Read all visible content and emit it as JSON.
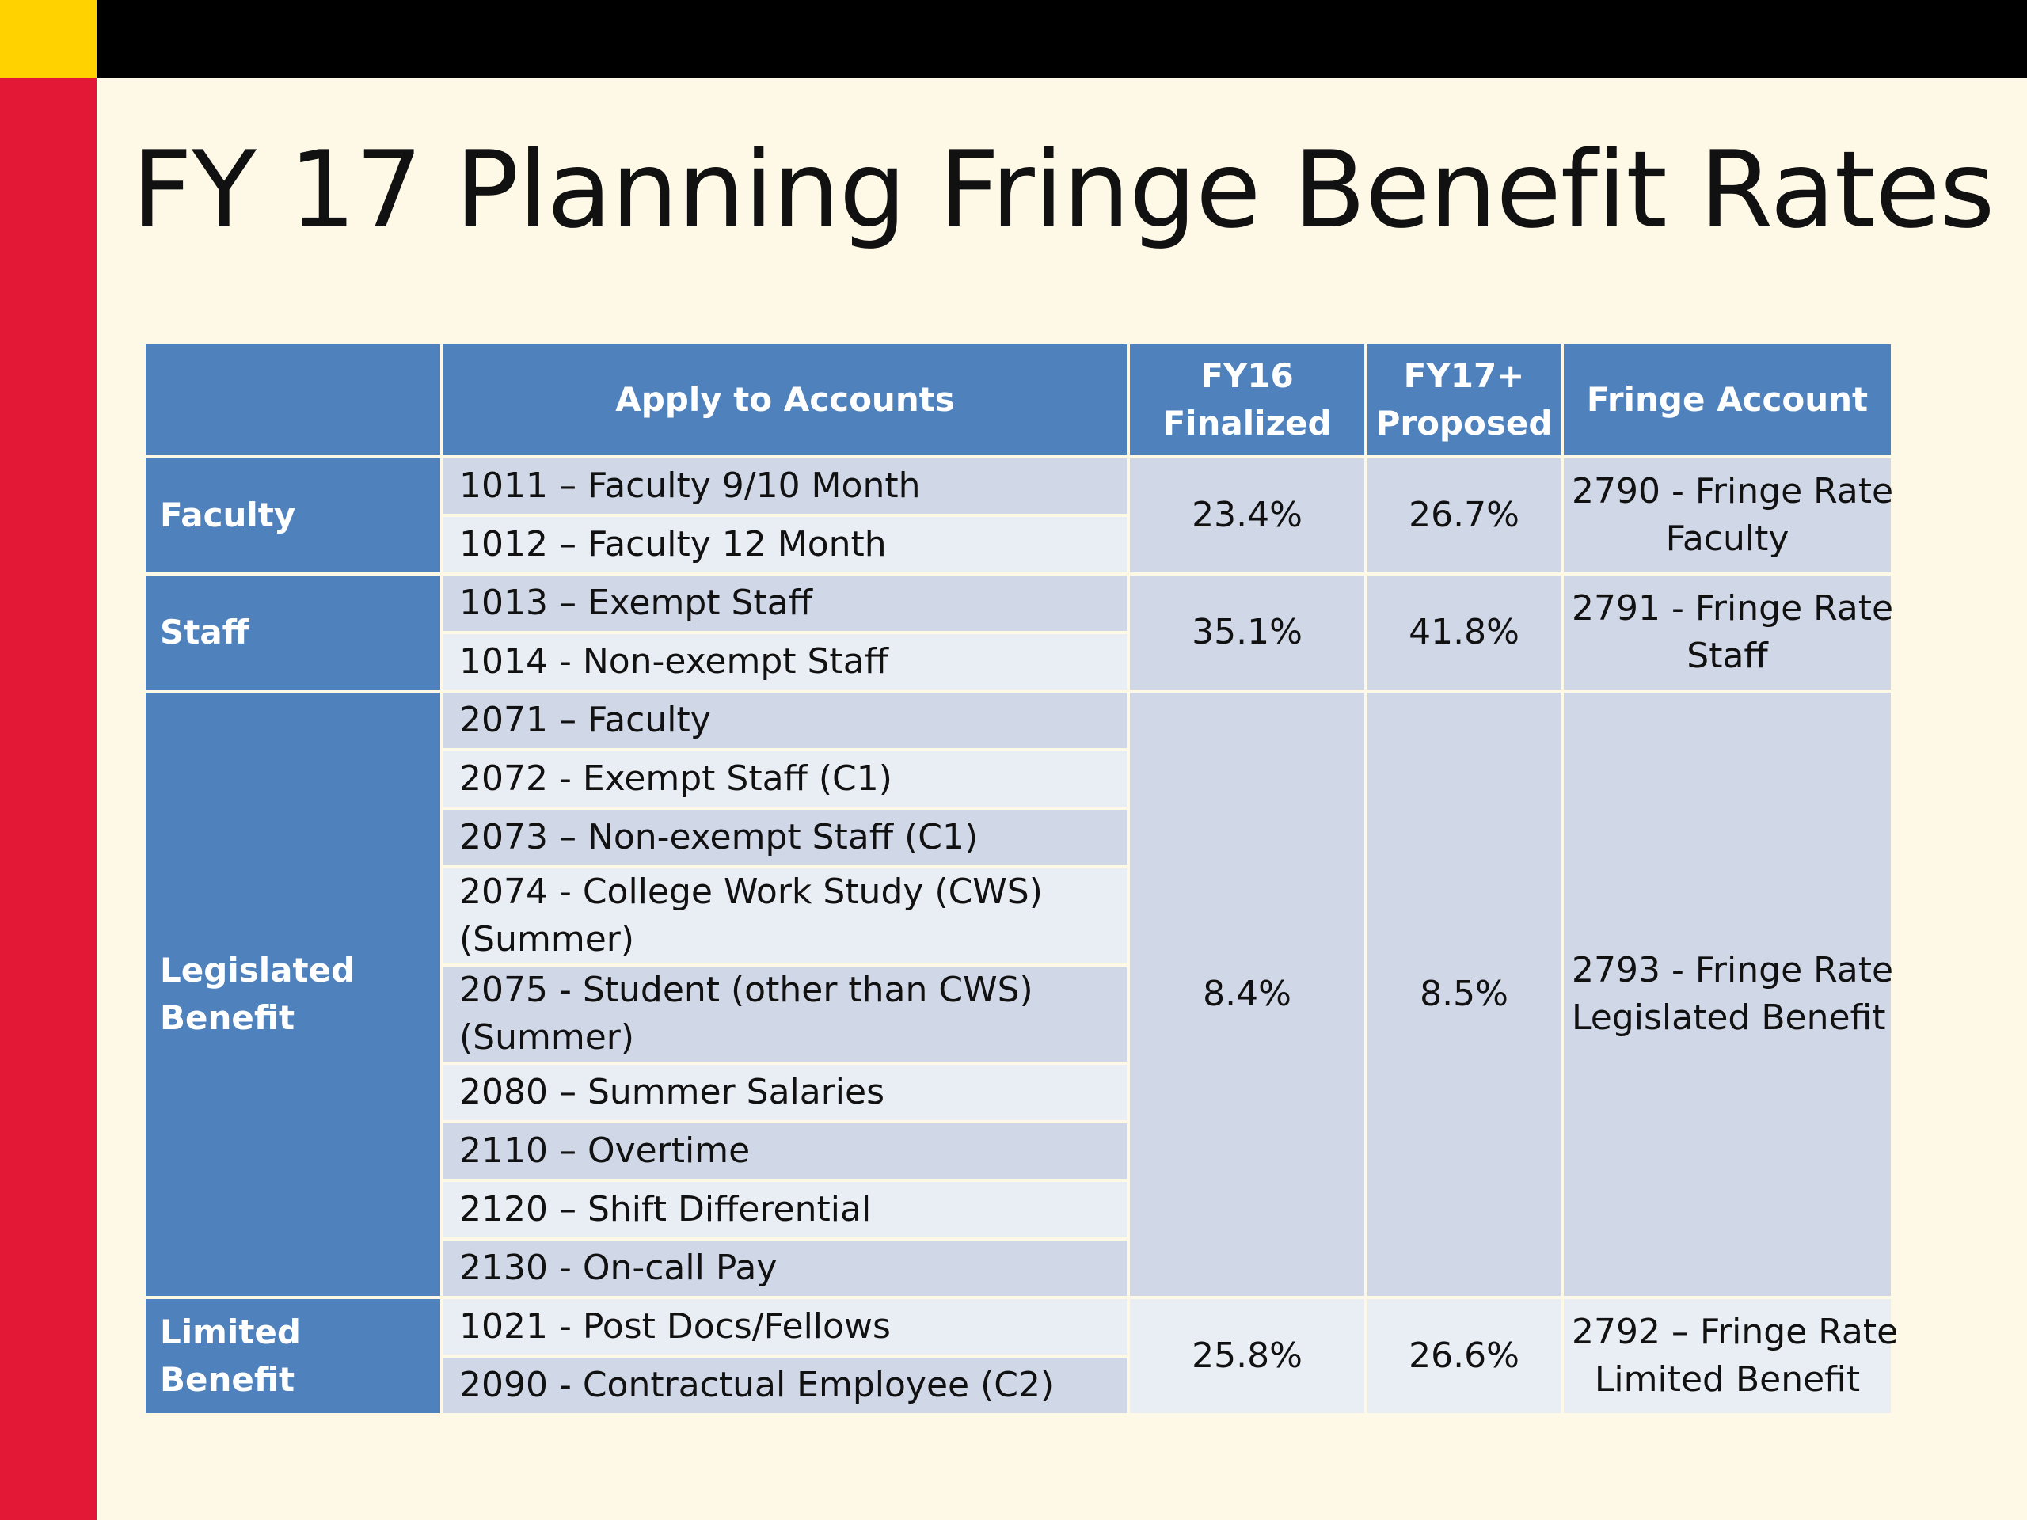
{
  "slide": {
    "title": "FY 17 Planning Fringe Benefit Rates"
  },
  "colors": {
    "header_blue": "#4f81bd",
    "row_dark": "#d0d8e8",
    "row_light": "#e9edf4",
    "background": "#fef9e7",
    "top_bar": "#000000",
    "side_bar": "#e31837",
    "corner": "#ffd200"
  },
  "table": {
    "headers": {
      "category": "",
      "accounts": "Apply to Accounts",
      "fy16_line1": "FY16",
      "fy16_line2": "Finalized",
      "fy17_line1": "FY17+",
      "fy17_line2": "Proposed",
      "fringe": "Fringe Account"
    },
    "groups": [
      {
        "category": "Faculty",
        "accounts": [
          "1011 – Faculty 9/10 Month",
          "1012 – Faculty 12 Month"
        ],
        "fy16": "23.4%",
        "fy17": "26.7%",
        "fringe_line1": "2790 - Fringe Rate",
        "fringe_line2": "Faculty"
      },
      {
        "category": "Staff",
        "accounts": [
          "1013 – Exempt Staff",
          "1014 - Non-exempt Staff"
        ],
        "fy16": "35.1%",
        "fy17": "41.8%",
        "fringe_line1": "2791 - Fringe Rate",
        "fringe_line2": "Staff"
      },
      {
        "category_line1": "Legislated",
        "category_line2": "Benefit",
        "accounts": [
          "2071 – Faculty",
          "2072 - Exempt Staff (C1)",
          "2073 – Non-exempt Staff (C1)",
          "2074 - College Work Study (CWS) (Summer)",
          "2075 - Student (other than CWS) (Summer)",
          "2080 – Summer Salaries",
          "2110 – Overtime",
          "2120 – Shift Differential",
          "2130 - On-call Pay"
        ],
        "fy16": "8.4%",
        "fy17": "8.5%",
        "fringe_line1": "2793 - Fringe Rate",
        "fringe_line2": "Legislated Benefit"
      },
      {
        "category": "Limited Benefit",
        "accounts": [
          "1021 - Post Docs/Fellows",
          "2090 - Contractual Employee (C2)"
        ],
        "fy16": "25.8%",
        "fy17": "26.6%",
        "fringe_line1": "2792 – Fringe Rate",
        "fringe_line2": "Limited Benefit"
      }
    ]
  }
}
